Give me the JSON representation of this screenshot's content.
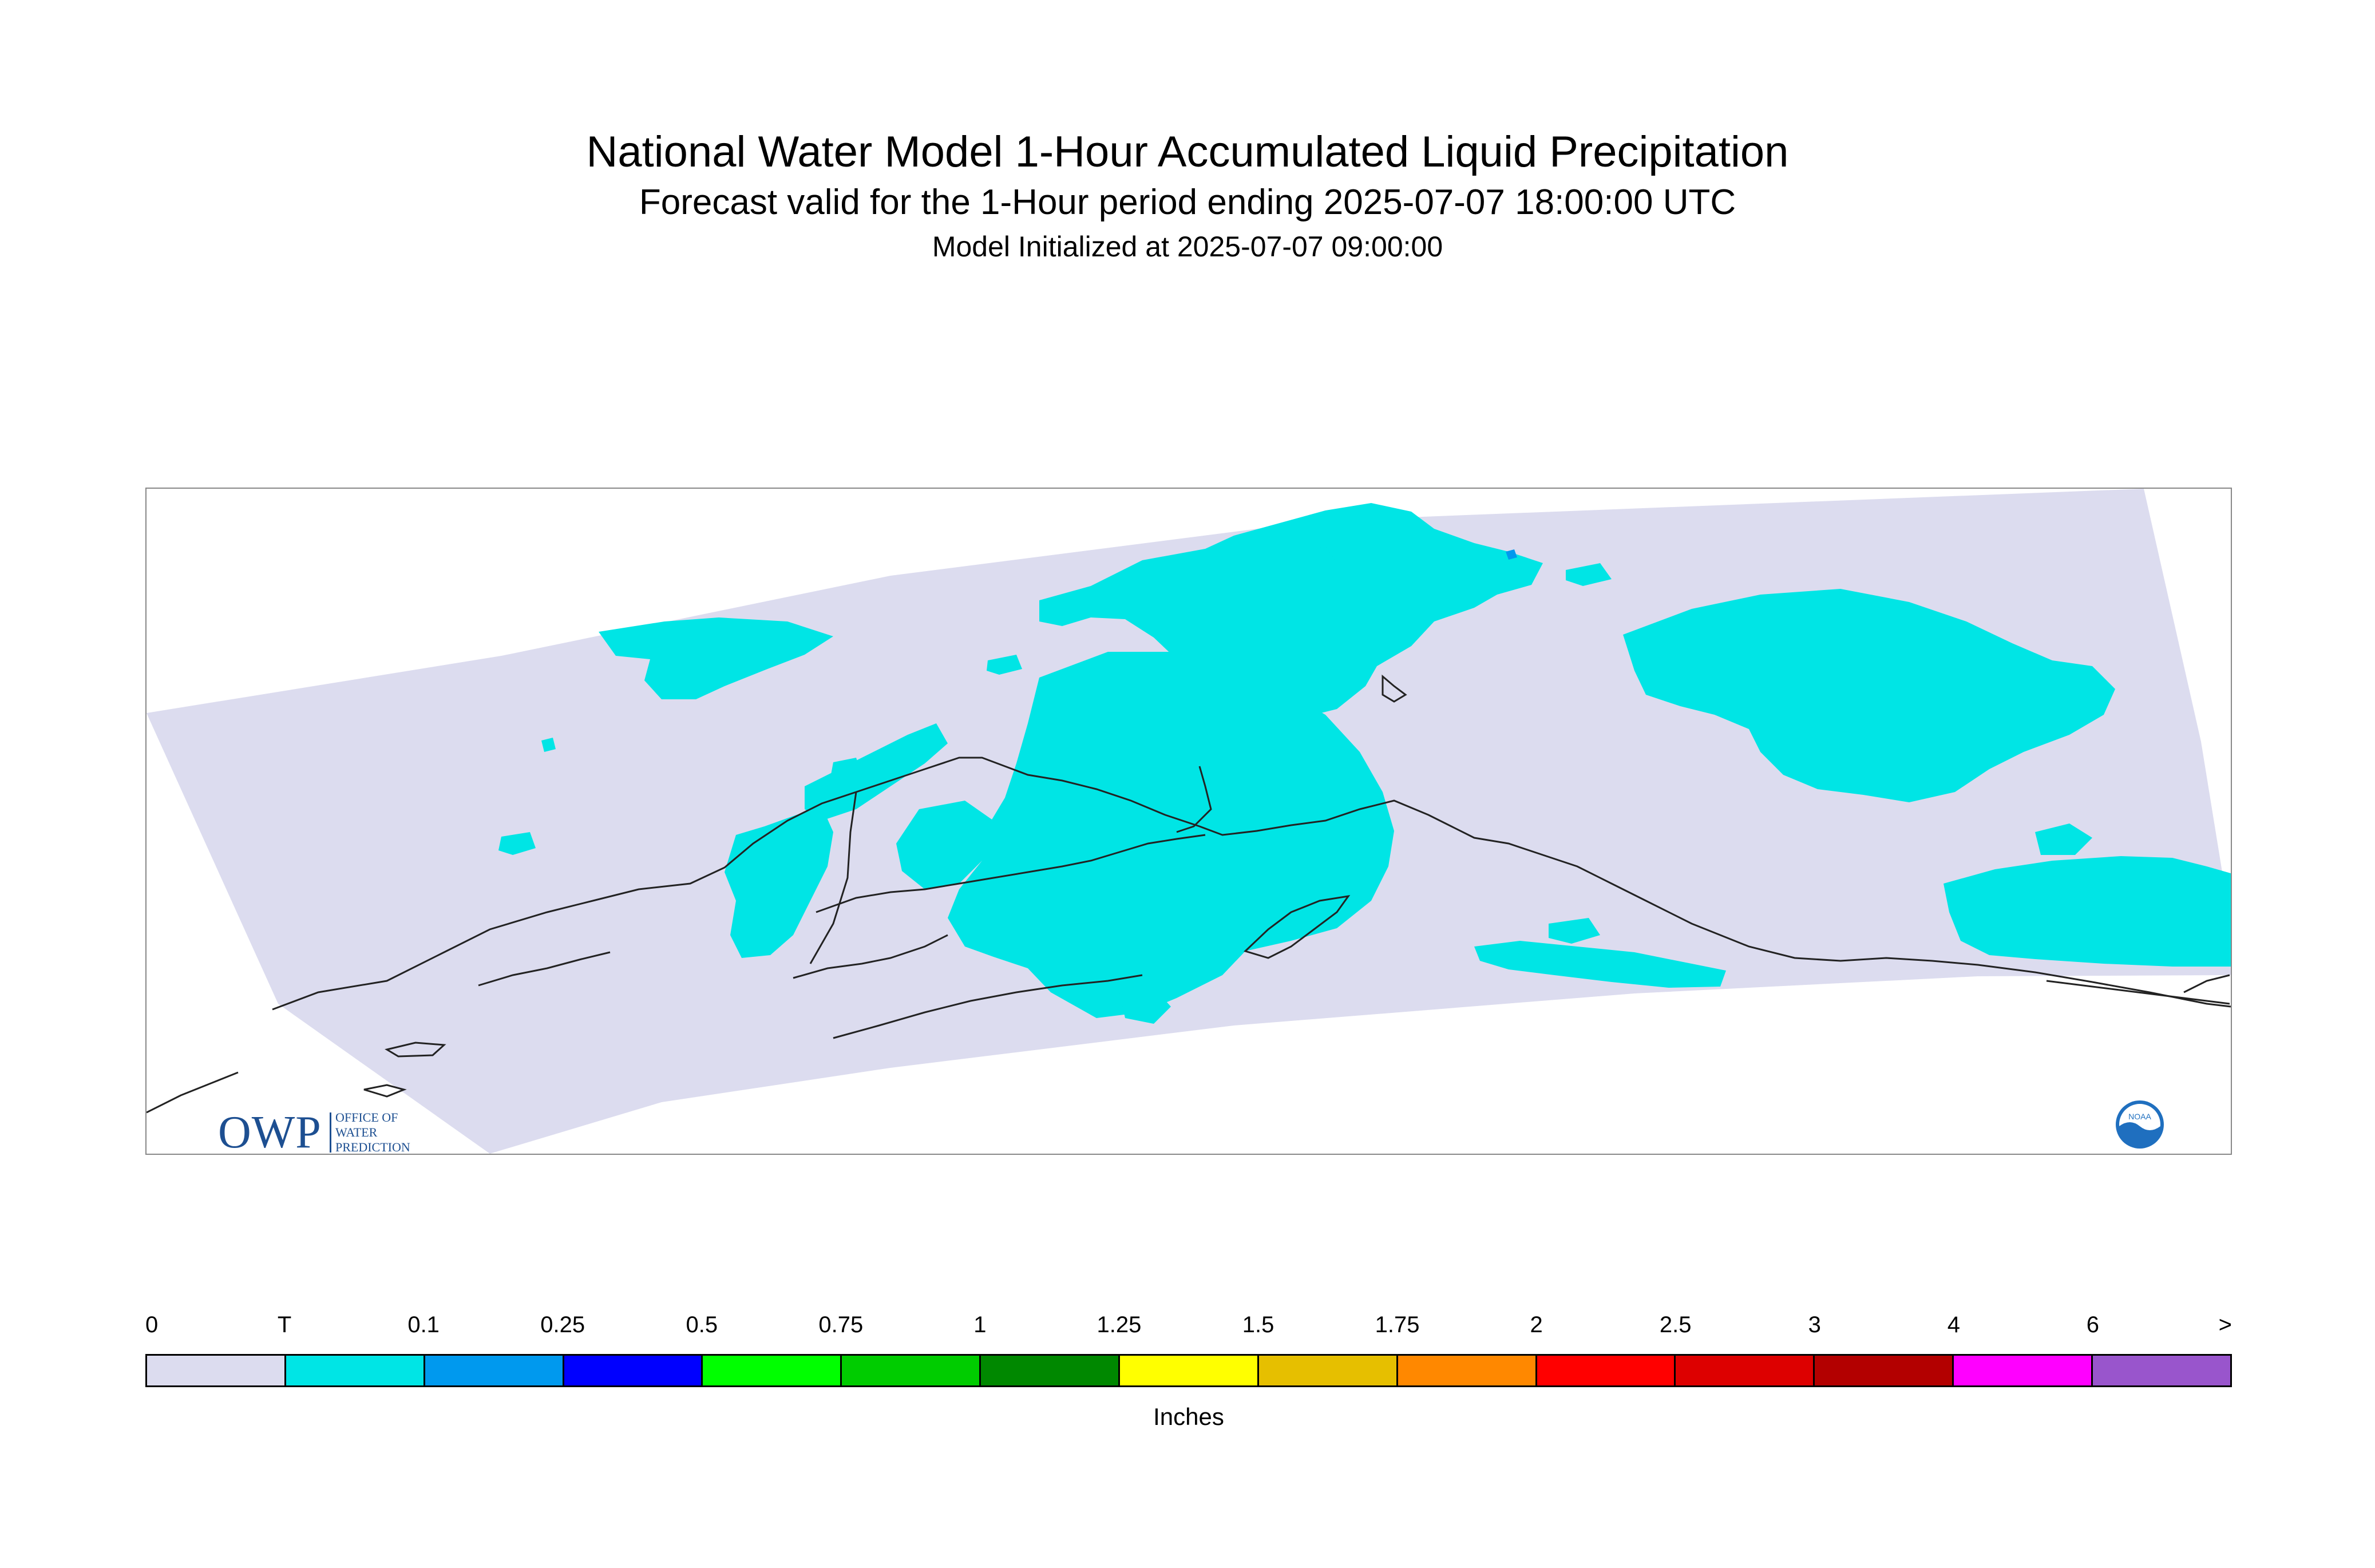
{
  "header": {
    "title": "National Water Model 1-Hour Accumulated Liquid Precipitation",
    "subtitle": "Forecast valid for the 1-Hour period ending 2025-07-07 18:00:00 UTC",
    "initialized": "Model Initialized at 2025-07-07 09:00:00"
  },
  "logos": {
    "owp": {
      "letters": "OWP",
      "line1": "OFFICE OF",
      "line2": "WATER",
      "line3": "PREDICTION"
    },
    "noaa": {
      "text": "NOAA"
    }
  },
  "colors": {
    "domain_background": "#dcdcef",
    "trace": "#00e5e5",
    "coastline": "#222222",
    "owp_blue": "#1d4f91",
    "noaa_blue": "#1f6fbf"
  },
  "legend": {
    "units": "Inches",
    "labels": [
      "0",
      "T",
      "0.1",
      "0.25",
      "0.5",
      "0.75",
      "1",
      "1.25",
      "1.5",
      "1.75",
      "2",
      "2.5",
      "3",
      "4",
      "6",
      ">"
    ],
    "colors": [
      "#dcdcef",
      "#00e5e5",
      "#0099ee",
      "#0000ff",
      "#00ff00",
      "#00cc00",
      "#008800",
      "#ffff00",
      "#e6bf00",
      "#ff8800",
      "#ff0000",
      "#dd0000",
      "#b30000",
      "#ff00ff",
      "#9955cc"
    ]
  }
}
